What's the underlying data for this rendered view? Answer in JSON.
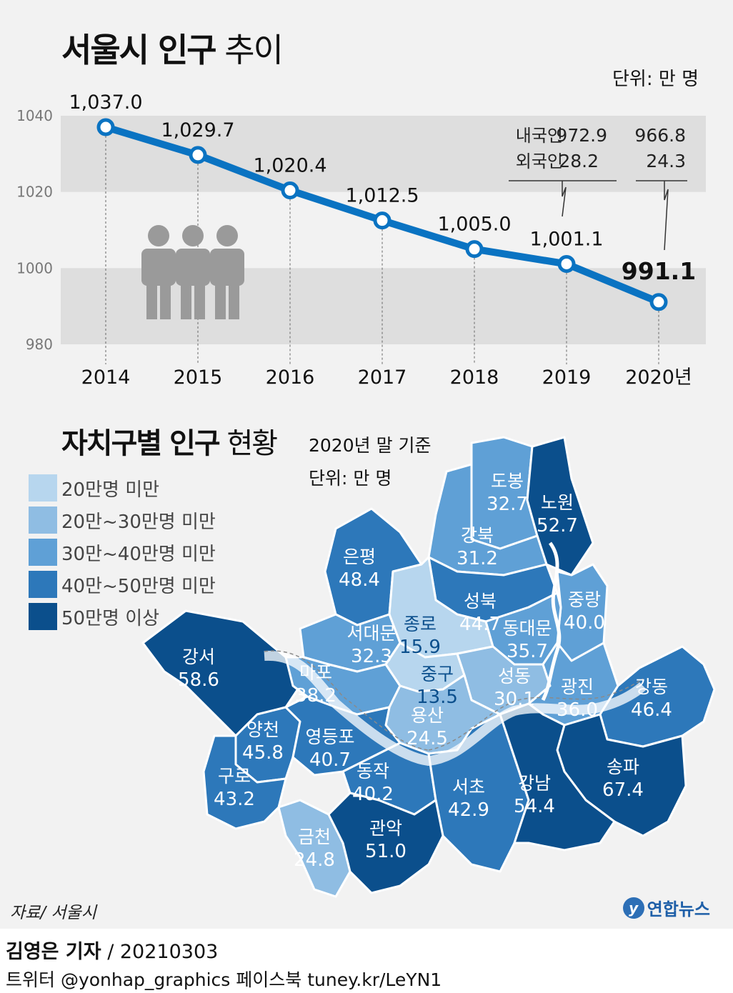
{
  "top_chart": {
    "title_bold": "서울시 인구",
    "title_light": " 추이",
    "unit": "단위: 만 명",
    "breakdown": {
      "domestic_label": "내국인",
      "foreign_label": "외국인",
      "y2019_domestic": "972.9",
      "y2019_foreign": "28.2",
      "y2020_domestic": "966.8",
      "y2020_foreign": "24.3"
    }
  },
  "bottom_map": {
    "title_bold": "자치구별 인구",
    "title_light": " 현황",
    "basis": "2020년 말 기준",
    "unit": "단위: 만 명",
    "legend": [
      {
        "label": "20만명 미만",
        "color": "#b7d6ee"
      },
      {
        "label": "20만~30만명 미만",
        "color": "#8fbde3"
      },
      {
        "label": "30만~40만명 미만",
        "color": "#5fa0d6"
      },
      {
        "label": "40만~50만명 미만",
        "color": "#2d78ba"
      },
      {
        "label": "50만명 이상",
        "color": "#0b4f8c"
      }
    ],
    "districts": [
      {
        "name": "도봉",
        "value": "32.7"
      },
      {
        "name": "노원",
        "value": "52.7"
      },
      {
        "name": "강북",
        "value": "31.2"
      },
      {
        "name": "은평",
        "value": "48.4"
      },
      {
        "name": "성북",
        "value": "44.7"
      },
      {
        "name": "중랑",
        "value": "40.0"
      },
      {
        "name": "종로",
        "value": "15.9"
      },
      {
        "name": "서대문",
        "value": "32.3"
      },
      {
        "name": "동대문",
        "value": "35.7"
      },
      {
        "name": "강서",
        "value": "58.6"
      },
      {
        "name": "마포",
        "value": "38.2"
      },
      {
        "name": "중구",
        "value": "13.5"
      },
      {
        "name": "성동",
        "value": "30.1"
      },
      {
        "name": "광진",
        "value": "36.0"
      },
      {
        "name": "강동",
        "value": "46.4"
      },
      {
        "name": "용산",
        "value": "24.5"
      },
      {
        "name": "양천",
        "value": "45.8"
      },
      {
        "name": "영등포",
        "value": "40.7"
      },
      {
        "name": "송파",
        "value": "67.4"
      },
      {
        "name": "구로",
        "value": "43.2"
      },
      {
        "name": "동작",
        "value": "40.2"
      },
      {
        "name": "서초",
        "value": "42.9"
      },
      {
        "name": "강남",
        "value": "54.4"
      },
      {
        "name": "금천",
        "value": "24.8"
      },
      {
        "name": "관악",
        "value": "51.0"
      }
    ]
  },
  "chart_data": {
    "type": "line",
    "x": [
      "2014",
      "2015",
      "2016",
      "2017",
      "2018",
      "2019",
      "2020년"
    ],
    "series": [
      {
        "values": [
          1037.0,
          1029.7,
          1020.4,
          1012.5,
          1005.0,
          1001.1,
          991.1
        ]
      }
    ],
    "value_labels": [
      "1,037.0",
      "1,029.7",
      "1,020.4",
      "1,012.5",
      "1,005.0",
      "1,001.1",
      "991.1"
    ],
    "yticks": [
      980,
      1000,
      1020,
      1040
    ],
    "ylim": [
      980,
      1040
    ],
    "line_color": "#0a73c2"
  },
  "footer": {
    "source": "자료/ 서울시",
    "brand": "연합뉴스",
    "brand_mark": "y",
    "reporter": "김영은 기자",
    "date": " / 20210303",
    "social": "트위터 @yonhap_graphics  페이스북 tuney.kr/LeYN1"
  }
}
